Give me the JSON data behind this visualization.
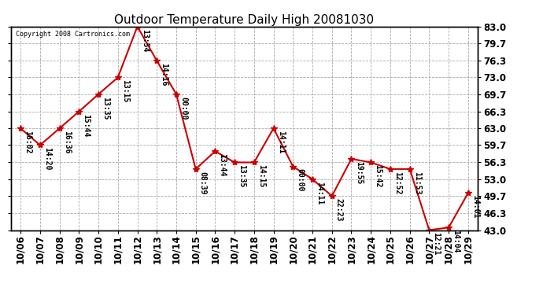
{
  "title": "Outdoor Temperature Daily High 20081030",
  "copyright": "Copyright 2008 Cartronics.com",
  "x_labels": [
    "10/06",
    "10/07",
    "10/08",
    "10/09",
    "10/10",
    "10/11",
    "10/12",
    "10/13",
    "10/14",
    "10/15",
    "10/16",
    "10/17",
    "10/18",
    "10/19",
    "10/20",
    "10/21",
    "10/22",
    "10/23",
    "10/24",
    "10/25",
    "10/26",
    "10/27",
    "10/28",
    "10/29"
  ],
  "y_values": [
    63.0,
    59.7,
    63.0,
    66.3,
    69.7,
    73.0,
    83.0,
    76.3,
    69.7,
    55.0,
    58.5,
    56.3,
    56.3,
    63.0,
    55.5,
    53.0,
    49.7,
    57.0,
    56.3,
    55.0,
    55.0,
    43.0,
    43.5,
    50.3
  ],
  "time_labels": [
    "16:02",
    "14:20",
    "16:36",
    "15:44",
    "13:35",
    "13:15",
    "13:54",
    "14:16",
    "00:00",
    "08:39",
    "13:44",
    "13:35",
    "14:15",
    "14:11",
    "00:00",
    "14:11",
    "22:23",
    "19:55",
    "15:42",
    "12:52",
    "11:53",
    "12:21",
    "14:04",
    "14:01"
  ],
  "y_ticks": [
    43.0,
    46.3,
    49.7,
    53.0,
    56.3,
    59.7,
    63.0,
    66.3,
    69.7,
    73.0,
    76.3,
    79.7,
    83.0
  ],
  "ylim": [
    43.0,
    83.0
  ],
  "line_color": "#cc0000",
  "marker_color": "#cc0000",
  "bg_color": "#ffffff",
  "grid_color": "#aaaaaa",
  "title_fontsize": 11,
  "label_fontsize": 7,
  "tick_fontsize": 8.5,
  "figwidth": 6.9,
  "figheight": 3.75,
  "dpi": 100
}
